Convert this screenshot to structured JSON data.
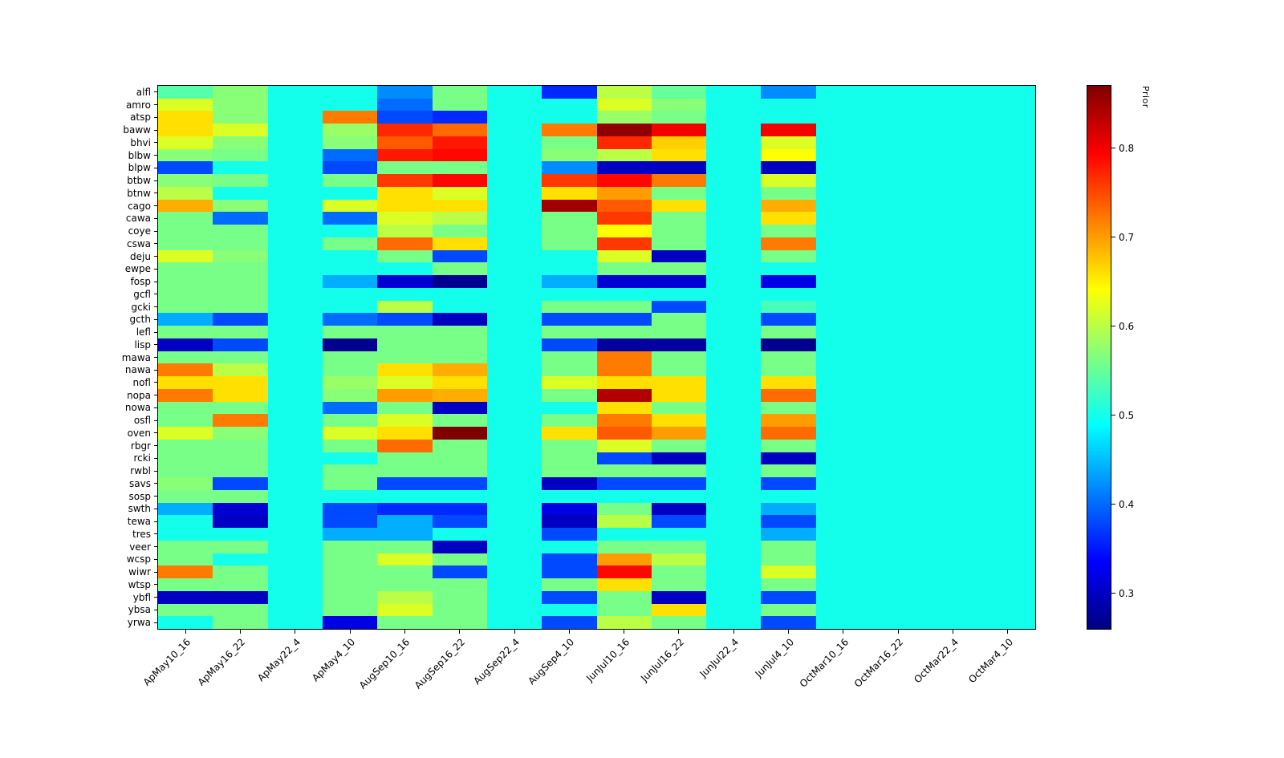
{
  "figure": {
    "background": "#ffffff"
  },
  "colorbar": {
    "label": "Prior",
    "ticks": [
      0.3,
      0.4,
      0.5,
      0.6,
      0.7,
      0.8
    ]
  },
  "chart_data": {
    "type": "heatmap",
    "colormap": "jet",
    "colorbar_label": "Prior",
    "vmin": 0.26,
    "vmax": 0.87,
    "legend_position": "right-colorbar",
    "rows": [
      "alfl",
      "amro",
      "atsp",
      "baww",
      "bhvi",
      "blbw",
      "blpw",
      "btbw",
      "btnw",
      "cago",
      "cawa",
      "coye",
      "cswa",
      "deju",
      "ewpe",
      "fosp",
      "gcfl",
      "gcki",
      "gcth",
      "lefl",
      "lisp",
      "mawa",
      "nawa",
      "nofl",
      "nopa",
      "nowa",
      "osfl",
      "oven",
      "rbgr",
      "rcki",
      "rwbl",
      "savs",
      "sosp",
      "swth",
      "tewa",
      "tres",
      "veer",
      "wcsp",
      "wiwr",
      "wtsp",
      "ybfl",
      "ybsa",
      "yrwa"
    ],
    "columns": [
      "ApMay10_16",
      "ApMay16_22",
      "ApMay22_4",
      "ApMay4_10",
      "AugSep10_16",
      "AugSep16_22",
      "AugSep22_4",
      "AugSep4_10",
      "JunJul10_16",
      "JunJul16_22",
      "JunJul22_4",
      "JunJul4_10",
      "OctMar10_16",
      "OctMar16_22",
      "OctMar22_4",
      "OctMar4_10"
    ],
    "values": [
      [
        0.54,
        0.57,
        0.5,
        0.5,
        0.42,
        0.56,
        0.5,
        0.36,
        0.6,
        0.55,
        0.5,
        0.42,
        0.5,
        0.5,
        0.5,
        0.5
      ],
      [
        0.62,
        0.57,
        0.5,
        0.5,
        0.4,
        0.56,
        0.5,
        0.5,
        0.62,
        0.57,
        0.5,
        0.5,
        0.5,
        0.5,
        0.5,
        0.5
      ],
      [
        0.66,
        0.57,
        0.5,
        0.72,
        0.38,
        0.36,
        0.5,
        0.5,
        0.58,
        0.56,
        0.5,
        0.5,
        0.5,
        0.5,
        0.5,
        0.5
      ],
      [
        0.66,
        0.62,
        0.5,
        0.58,
        0.77,
        0.73,
        0.5,
        0.72,
        0.86,
        0.8,
        0.5,
        0.8,
        0.5,
        0.5,
        0.5,
        0.5
      ],
      [
        0.62,
        0.57,
        0.5,
        0.57,
        0.74,
        0.78,
        0.5,
        0.56,
        0.77,
        0.67,
        0.5,
        0.62,
        0.5,
        0.5,
        0.5,
        0.5
      ],
      [
        0.57,
        0.56,
        0.5,
        0.4,
        0.78,
        0.79,
        0.5,
        0.57,
        0.6,
        0.66,
        0.5,
        0.64,
        0.5,
        0.5,
        0.5,
        0.5
      ],
      [
        0.38,
        0.5,
        0.5,
        0.38,
        0.56,
        0.56,
        0.5,
        0.42,
        0.3,
        0.3,
        0.5,
        0.3,
        0.5,
        0.5,
        0.5,
        0.5
      ],
      [
        0.57,
        0.56,
        0.5,
        0.56,
        0.76,
        0.79,
        0.5,
        0.76,
        0.79,
        0.72,
        0.5,
        0.62,
        0.5,
        0.5,
        0.5,
        0.5
      ],
      [
        0.6,
        0.5,
        0.5,
        0.5,
        0.66,
        0.62,
        0.5,
        0.66,
        0.7,
        0.56,
        0.5,
        0.56,
        0.5,
        0.5,
        0.5,
        0.5
      ],
      [
        0.69,
        0.57,
        0.5,
        0.62,
        0.66,
        0.66,
        0.5,
        0.85,
        0.74,
        0.66,
        0.5,
        0.69,
        0.5,
        0.5,
        0.5,
        0.5
      ],
      [
        0.56,
        0.4,
        0.5,
        0.4,
        0.62,
        0.6,
        0.5,
        0.56,
        0.76,
        0.56,
        0.5,
        0.66,
        0.5,
        0.5,
        0.5,
        0.5
      ],
      [
        0.56,
        0.56,
        0.5,
        0.5,
        0.6,
        0.56,
        0.5,
        0.56,
        0.64,
        0.56,
        0.5,
        0.56,
        0.5,
        0.5,
        0.5,
        0.5
      ],
      [
        0.56,
        0.56,
        0.5,
        0.56,
        0.73,
        0.66,
        0.5,
        0.56,
        0.76,
        0.56,
        0.5,
        0.72,
        0.5,
        0.5,
        0.5,
        0.5
      ],
      [
        0.62,
        0.57,
        0.5,
        0.5,
        0.56,
        0.38,
        0.5,
        0.5,
        0.62,
        0.3,
        0.5,
        0.56,
        0.5,
        0.5,
        0.5,
        0.5
      ],
      [
        0.56,
        0.56,
        0.5,
        0.5,
        0.5,
        0.56,
        0.5,
        0.5,
        0.56,
        0.56,
        0.5,
        0.5,
        0.5,
        0.5,
        0.5,
        0.5
      ],
      [
        0.56,
        0.56,
        0.5,
        0.44,
        0.31,
        0.27,
        0.5,
        0.44,
        0.31,
        0.31,
        0.5,
        0.32,
        0.5,
        0.5,
        0.5,
        0.5
      ],
      [
        0.56,
        0.56,
        0.5,
        0.5,
        0.5,
        0.5,
        0.5,
        0.5,
        0.5,
        0.5,
        0.5,
        0.5,
        0.5,
        0.5,
        0.5,
        0.5
      ],
      [
        0.56,
        0.56,
        0.5,
        0.5,
        0.6,
        0.5,
        0.5,
        0.56,
        0.56,
        0.38,
        0.5,
        0.53,
        0.5,
        0.5,
        0.5,
        0.5
      ],
      [
        0.44,
        0.38,
        0.5,
        0.4,
        0.38,
        0.3,
        0.5,
        0.38,
        0.38,
        0.56,
        0.5,
        0.38,
        0.5,
        0.5,
        0.5,
        0.5
      ],
      [
        0.56,
        0.56,
        0.5,
        0.56,
        0.56,
        0.56,
        0.5,
        0.56,
        0.56,
        0.56,
        0.5,
        0.56,
        0.5,
        0.5,
        0.5,
        0.5
      ],
      [
        0.3,
        0.38,
        0.5,
        0.27,
        0.56,
        0.56,
        0.5,
        0.38,
        0.28,
        0.28,
        0.5,
        0.27,
        0.5,
        0.5,
        0.5,
        0.5
      ],
      [
        0.56,
        0.56,
        0.5,
        0.56,
        0.56,
        0.56,
        0.5,
        0.56,
        0.72,
        0.56,
        0.5,
        0.56,
        0.5,
        0.5,
        0.5,
        0.5
      ],
      [
        0.72,
        0.6,
        0.5,
        0.56,
        0.66,
        0.69,
        0.5,
        0.56,
        0.72,
        0.56,
        0.5,
        0.56,
        0.5,
        0.5,
        0.5,
        0.5
      ],
      [
        0.66,
        0.66,
        0.5,
        0.58,
        0.62,
        0.66,
        0.5,
        0.62,
        0.66,
        0.66,
        0.5,
        0.66,
        0.5,
        0.5,
        0.5,
        0.5
      ],
      [
        0.72,
        0.66,
        0.5,
        0.57,
        0.7,
        0.69,
        0.5,
        0.56,
        0.84,
        0.66,
        0.5,
        0.73,
        0.5,
        0.5,
        0.5,
        0.5
      ],
      [
        0.56,
        0.56,
        0.5,
        0.4,
        0.56,
        0.3,
        0.5,
        0.5,
        0.66,
        0.56,
        0.5,
        0.56,
        0.5,
        0.5,
        0.5,
        0.5
      ],
      [
        0.56,
        0.72,
        0.5,
        0.56,
        0.62,
        0.56,
        0.5,
        0.56,
        0.72,
        0.66,
        0.5,
        0.7,
        0.5,
        0.5,
        0.5,
        0.5
      ],
      [
        0.62,
        0.57,
        0.5,
        0.62,
        0.66,
        0.87,
        0.5,
        0.66,
        0.74,
        0.7,
        0.5,
        0.73,
        0.5,
        0.5,
        0.5,
        0.5
      ],
      [
        0.56,
        0.56,
        0.5,
        0.56,
        0.73,
        0.56,
        0.5,
        0.56,
        0.62,
        0.56,
        0.5,
        0.56,
        0.5,
        0.5,
        0.5,
        0.5
      ],
      [
        0.56,
        0.56,
        0.5,
        0.5,
        0.56,
        0.56,
        0.5,
        0.56,
        0.38,
        0.3,
        0.5,
        0.3,
        0.5,
        0.5,
        0.5,
        0.5
      ],
      [
        0.56,
        0.56,
        0.5,
        0.56,
        0.56,
        0.56,
        0.5,
        0.56,
        0.56,
        0.56,
        0.5,
        0.56,
        0.5,
        0.5,
        0.5,
        0.5
      ],
      [
        0.57,
        0.38,
        0.5,
        0.56,
        0.38,
        0.38,
        0.5,
        0.3,
        0.38,
        0.38,
        0.5,
        0.38,
        0.5,
        0.5,
        0.5,
        0.5
      ],
      [
        0.56,
        0.56,
        0.5,
        0.5,
        0.5,
        0.5,
        0.5,
        0.5,
        0.5,
        0.5,
        0.5,
        0.5,
        0.5,
        0.5,
        0.5,
        0.5
      ],
      [
        0.44,
        0.31,
        0.5,
        0.38,
        0.36,
        0.36,
        0.5,
        0.32,
        0.56,
        0.3,
        0.5,
        0.44,
        0.5,
        0.5,
        0.5,
        0.5
      ],
      [
        0.5,
        0.3,
        0.5,
        0.38,
        0.44,
        0.38,
        0.5,
        0.3,
        0.6,
        0.38,
        0.5,
        0.38,
        0.5,
        0.5,
        0.5,
        0.5
      ],
      [
        0.5,
        0.5,
        0.5,
        0.44,
        0.44,
        0.5,
        0.5,
        0.38,
        0.5,
        0.5,
        0.5,
        0.44,
        0.5,
        0.5,
        0.5,
        0.5
      ],
      [
        0.56,
        0.56,
        0.5,
        0.56,
        0.56,
        0.3,
        0.5,
        0.5,
        0.56,
        0.56,
        0.5,
        0.56,
        0.5,
        0.5,
        0.5,
        0.5
      ],
      [
        0.56,
        0.5,
        0.5,
        0.56,
        0.62,
        0.56,
        0.5,
        0.38,
        0.7,
        0.6,
        0.5,
        0.56,
        0.5,
        0.5,
        0.5,
        0.5
      ],
      [
        0.72,
        0.56,
        0.5,
        0.56,
        0.56,
        0.38,
        0.5,
        0.38,
        0.79,
        0.56,
        0.5,
        0.62,
        0.5,
        0.5,
        0.5,
        0.5
      ],
      [
        0.56,
        0.56,
        0.5,
        0.56,
        0.56,
        0.56,
        0.5,
        0.56,
        0.66,
        0.56,
        0.5,
        0.56,
        0.5,
        0.5,
        0.5,
        0.5
      ],
      [
        0.3,
        0.3,
        0.5,
        0.56,
        0.6,
        0.56,
        0.5,
        0.38,
        0.56,
        0.3,
        0.5,
        0.38,
        0.5,
        0.5,
        0.5,
        0.5
      ],
      [
        0.56,
        0.56,
        0.5,
        0.56,
        0.62,
        0.56,
        0.5,
        0.5,
        0.56,
        0.66,
        0.5,
        0.56,
        0.5,
        0.5,
        0.5,
        0.5
      ],
      [
        0.5,
        0.56,
        0.5,
        0.32,
        0.56,
        0.56,
        0.5,
        0.38,
        0.6,
        0.56,
        0.5,
        0.38,
        0.5,
        0.5,
        0.5,
        0.5
      ]
    ]
  }
}
